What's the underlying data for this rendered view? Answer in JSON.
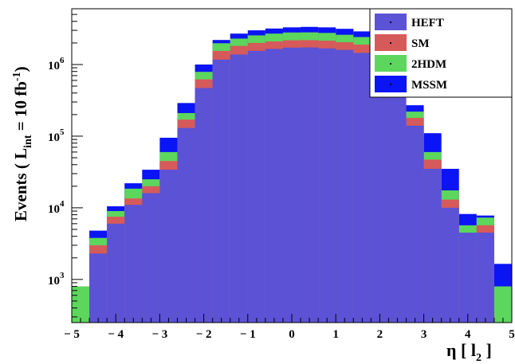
{
  "chart_data": {
    "type": "histogram-stacked",
    "xlabel": {
      "main": "η [ l",
      "sub": "2",
      "tail": " ]"
    },
    "ylabel": {
      "main": "Events  ( L",
      "sub": "int",
      "mid": " = 10 fb",
      "sup": "-1",
      "tail": ")"
    },
    "xlim": [
      -5,
      5
    ],
    "ylim": [
      250,
      6000000
    ],
    "y_scale": "log",
    "bin_width": 0.4,
    "x_ticks": [
      -5,
      -4,
      -3,
      -2,
      -1,
      0,
      1,
      2,
      3,
      4,
      5
    ],
    "y_ticks": [
      {
        "value": 1000,
        "label": "10",
        "exp": "3"
      },
      {
        "value": 10000,
        "label": "10",
        "exp": "4"
      },
      {
        "value": 100000,
        "label": "10",
        "exp": "5"
      },
      {
        "value": 1000000,
        "label": "10",
        "exp": "6"
      }
    ],
    "bins_low_edges": [
      -5.0,
      -4.6,
      -4.2,
      -3.8,
      -3.4,
      -3.0,
      -2.6,
      -2.2,
      -1.8,
      -1.4,
      -1.0,
      -0.6,
      -0.2,
      0.2,
      0.6,
      1.0,
      1.4,
      1.8,
      2.2,
      2.6,
      3.0,
      3.4,
      3.8,
      4.2,
      4.6
    ],
    "series": [
      {
        "name": "HEFT",
        "color": "#5b52d6",
        "values": [
          0,
          2300,
          6000,
          11000,
          16000,
          34000,
          130000,
          470000,
          1170000,
          1380000,
          1550000,
          1650000,
          1720000,
          1730000,
          1680000,
          1600000,
          1450000,
          1230000,
          660000,
          140000,
          35000,
          10000,
          4500,
          4500,
          0
        ]
      },
      {
        "name": "SM",
        "color": "#d65a5a",
        "values": [
          0,
          3000,
          7500,
          13500,
          20000,
          45000,
          170000,
          620000,
          1550000,
          1820000,
          2000000,
          2100000,
          2180000,
          2190000,
          2150000,
          2050000,
          1900000,
          1620000,
          870000,
          180000,
          47000,
          13000,
          2600,
          5700,
          0
        ]
      },
      {
        "name": "2HDM",
        "color": "#5cd65c",
        "values": [
          800,
          3800,
          9000,
          18500,
          25000,
          60000,
          210000,
          790000,
          1980000,
          2300000,
          2550000,
          2700000,
          2800000,
          2810000,
          2760000,
          2600000,
          2420000,
          2050000,
          1100000,
          220000,
          60000,
          17500,
          5700,
          7300,
          800
        ]
      },
      {
        "name": "MSSM",
        "color": "#0a14f5",
        "values": [
          0,
          4800,
          10500,
          22000,
          34000,
          95000,
          290000,
          1000000,
          2200000,
          2700000,
          3000000,
          3180000,
          3300000,
          3350000,
          3300000,
          3150000,
          2900000,
          2500000,
          1380000,
          270000,
          110000,
          35000,
          8200,
          7800,
          1650
        ]
      }
    ],
    "legend": {
      "position": "top-right",
      "entries": [
        "HEFT",
        "SM",
        "2HDM",
        "MSSM"
      ]
    }
  }
}
